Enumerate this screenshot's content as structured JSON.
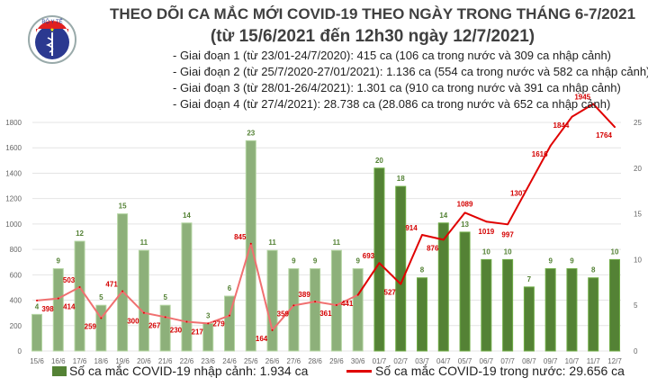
{
  "header": {
    "logo_text": "BỘ Y TẾ - MINISTRY OF HEALTH",
    "title": "THEO DÕI CA MẮC MỚI COVID-19 THEO NGÀY TRONG THÁNG 6-7/2021",
    "subtitle": "(từ 15/6/2021 đến 12h30 ngày 12/7/2021)",
    "phases": [
      "- Giai đoạn 1 (từ 23/01-24/7/2020): 415 ca (106 ca trong nước và 309 ca nhập cảnh)",
      "- Giai đoạn 2 (từ 25/7/2020-27/01/2021): 1.136 ca (554 ca trong nước và 582 ca nhập cảnh)",
      "- Giai đoạn 3 (từ 28/01-26/4/2021): 1.301 ca (910 ca trong nước và 391 ca nhập cảnh)",
      "- Giai đoạn 4 (từ 27/4/2021): 28.738 ca (28.086 ca trong nước và 652 ca nhập cảnh)"
    ]
  },
  "chart_data": {
    "type": "bar+line",
    "categories": [
      "15/6",
      "16/6",
      "17/6",
      "18/6",
      "19/6",
      "20/6",
      "21/6",
      "22/6",
      "23/6",
      "24/6",
      "25/6",
      "26/6",
      "27/6",
      "28/6",
      "29/6",
      "30/6",
      "01/7",
      "02/7",
      "03/7",
      "04/7",
      "05/7",
      "06/7",
      "07/7",
      "08/7",
      "09/7",
      "10/7",
      "11/7",
      "12/7"
    ],
    "series": [
      {
        "name": "Số ca mắc COVID-19 nhập cảnh: 1.934 ca",
        "type": "bar",
        "axis": "right",
        "color": "#548235",
        "values": [
          4,
          9,
          12,
          5,
          15,
          11,
          5,
          14,
          3,
          6,
          23,
          11,
          9,
          9,
          11,
          9,
          20,
          18,
          8,
          14,
          13,
          10,
          10,
          7,
          9,
          9,
          8,
          10
        ]
      },
      {
        "name": "Số ca mắc COVID-19 trong nước: 29.656 ca",
        "type": "line",
        "axis": "left",
        "color": "#e00000",
        "values": [
          398,
          414,
          503,
          259,
          471,
          300,
          267,
          230,
          217,
          279,
          845,
          164,
          359,
          389,
          361,
          441,
          693,
          527,
          914,
          876,
          1089,
          1019,
          997,
          1307,
          1616,
          1844,
          1945,
          1764
        ]
      }
    ],
    "left_axis": {
      "ticks": [
        0,
        200,
        400,
        600,
        800,
        1000,
        1200,
        1400,
        1600,
        1800
      ],
      "ylim": [
        0,
        1800
      ]
    },
    "right_axis": {
      "ticks": [
        0,
        5,
        10,
        15,
        20,
        25
      ],
      "ylim": [
        0,
        25
      ]
    },
    "grid": true,
    "legend": "bottom"
  }
}
